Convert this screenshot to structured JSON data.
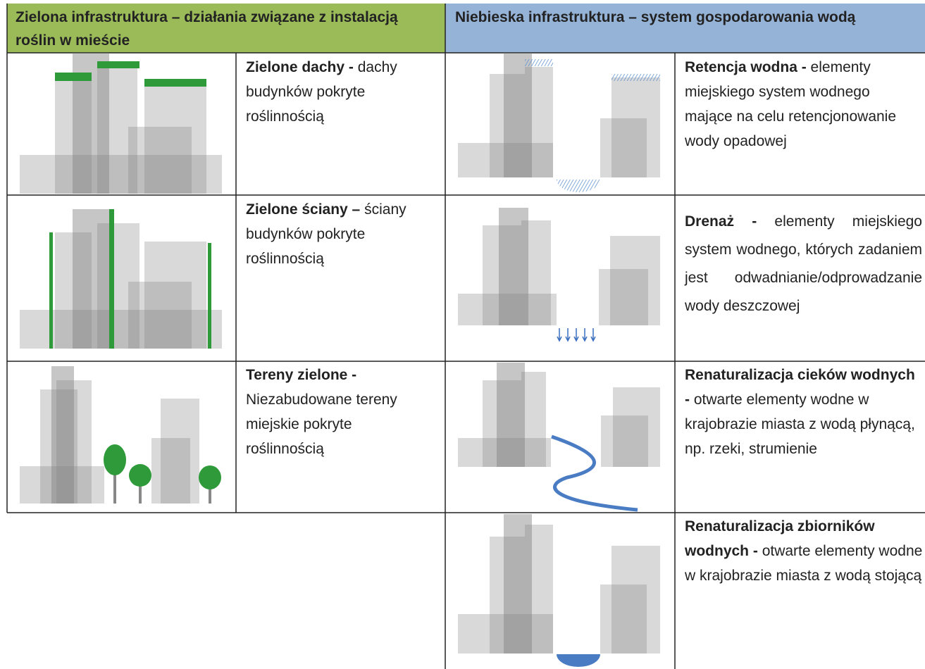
{
  "header": {
    "green_title": "Zielona infrastruktura – działania związane z instalacją roślin w mieście",
    "blue_title": "Niebieska infrastruktura – system gospodarowania wodą"
  },
  "green_rows": [
    {
      "term": "Zielone dachy -",
      "description": "dachy budynków pokryte roślinnością"
    },
    {
      "term": "Zielone ściany –",
      "description": "ściany budynków pokryte roślinnością"
    },
    {
      "term": "Tereny zielone -",
      "description": "Niezabudowane tereny miejskie pokryte roślinnością"
    }
  ],
  "blue_rows": [
    {
      "term": "Retencja wodna -",
      "description": "elementy miejskiego system wodnego mające na celu retencjonowanie wody opadowej"
    },
    {
      "term": "Drenaż -",
      "description": "elementy miejskiego system wodnego, których zadaniem jest odwadnianie/odprowadzanie wody deszczowej"
    },
    {
      "term": "Renaturalizacja cieków wodnych -",
      "description": "otwarte elementy wodne w krajobrazie miasta z wodą płynącą, np. rzeki, strumienie"
    },
    {
      "term": "Renaturalizacja zbiorników wodnych -",
      "description": "otwarte elementy wodne w krajobrazie miasta z wodą stojącą"
    }
  ]
}
